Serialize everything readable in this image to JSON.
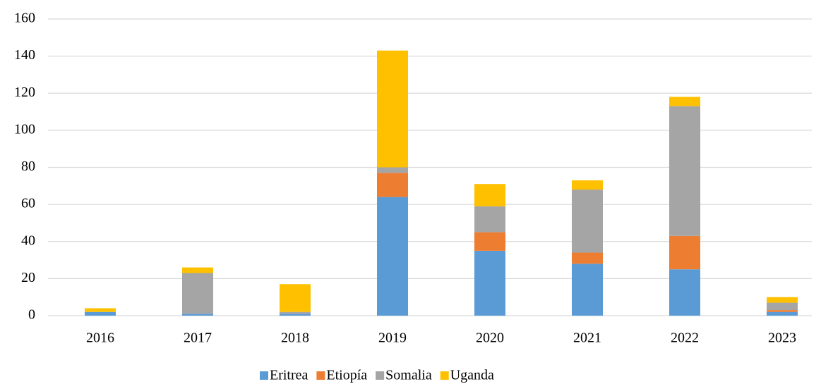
{
  "chart_data": {
    "type": "stacked_bar",
    "categories": [
      "2016",
      "2017",
      "2018",
      "2019",
      "2020",
      "2021",
      "2022",
      "2023"
    ],
    "series": [
      {
        "name": "Eritrea",
        "color": "#5b9bd5",
        "values": [
          2,
          1,
          1,
          64,
          35,
          28,
          25,
          2
        ]
      },
      {
        "name": "Etiopía",
        "color": "#ed7d31",
        "values": [
          0,
          0,
          0,
          13,
          10,
          6,
          18,
          1
        ]
      },
      {
        "name": "Somalia",
        "color": "#a5a5a5",
        "values": [
          0,
          22,
          1,
          3,
          14,
          34,
          70,
          4
        ]
      },
      {
        "name": "Uganda",
        "color": "#ffc000",
        "values": [
          2,
          3,
          15,
          63,
          12,
          5,
          5,
          3
        ]
      }
    ],
    "ylim": [
      0,
      160
    ],
    "yticks": [
      0,
      20,
      40,
      60,
      80,
      100,
      120,
      140,
      160
    ],
    "grid": true,
    "legend": "bottom"
  }
}
